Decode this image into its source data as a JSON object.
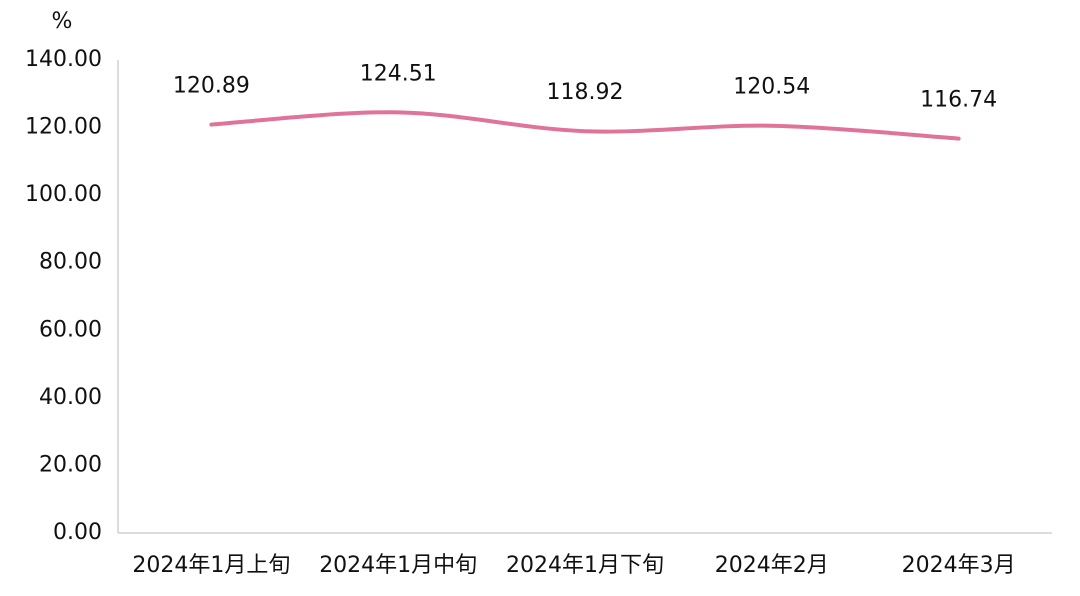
{
  "chart_data": {
    "type": "line",
    "y_unit": "%",
    "categories": [
      "2024年1月上旬",
      "2024年1月中旬",
      "2024年1月下旬",
      "2024年2月",
      "2024年3月"
    ],
    "series": [
      {
        "color": "#e07399",
        "values": [
          120.89,
          124.51,
          118.92,
          120.54,
          116.74
        ]
      }
    ],
    "smooth": true,
    "ylim": [
      0,
      140
    ],
    "yticks": [
      {
        "value": 0,
        "label": "0.00"
      },
      {
        "value": 20,
        "label": "20.00"
      },
      {
        "value": 40,
        "label": "40.00"
      },
      {
        "value": 60,
        "label": "60.00"
      },
      {
        "value": 80,
        "label": "80.00"
      },
      {
        "value": 100,
        "label": "100.00"
      },
      {
        "value": 120,
        "label": "120.00"
      },
      {
        "value": 140,
        "label": "140.00"
      }
    ],
    "grid": false
  }
}
